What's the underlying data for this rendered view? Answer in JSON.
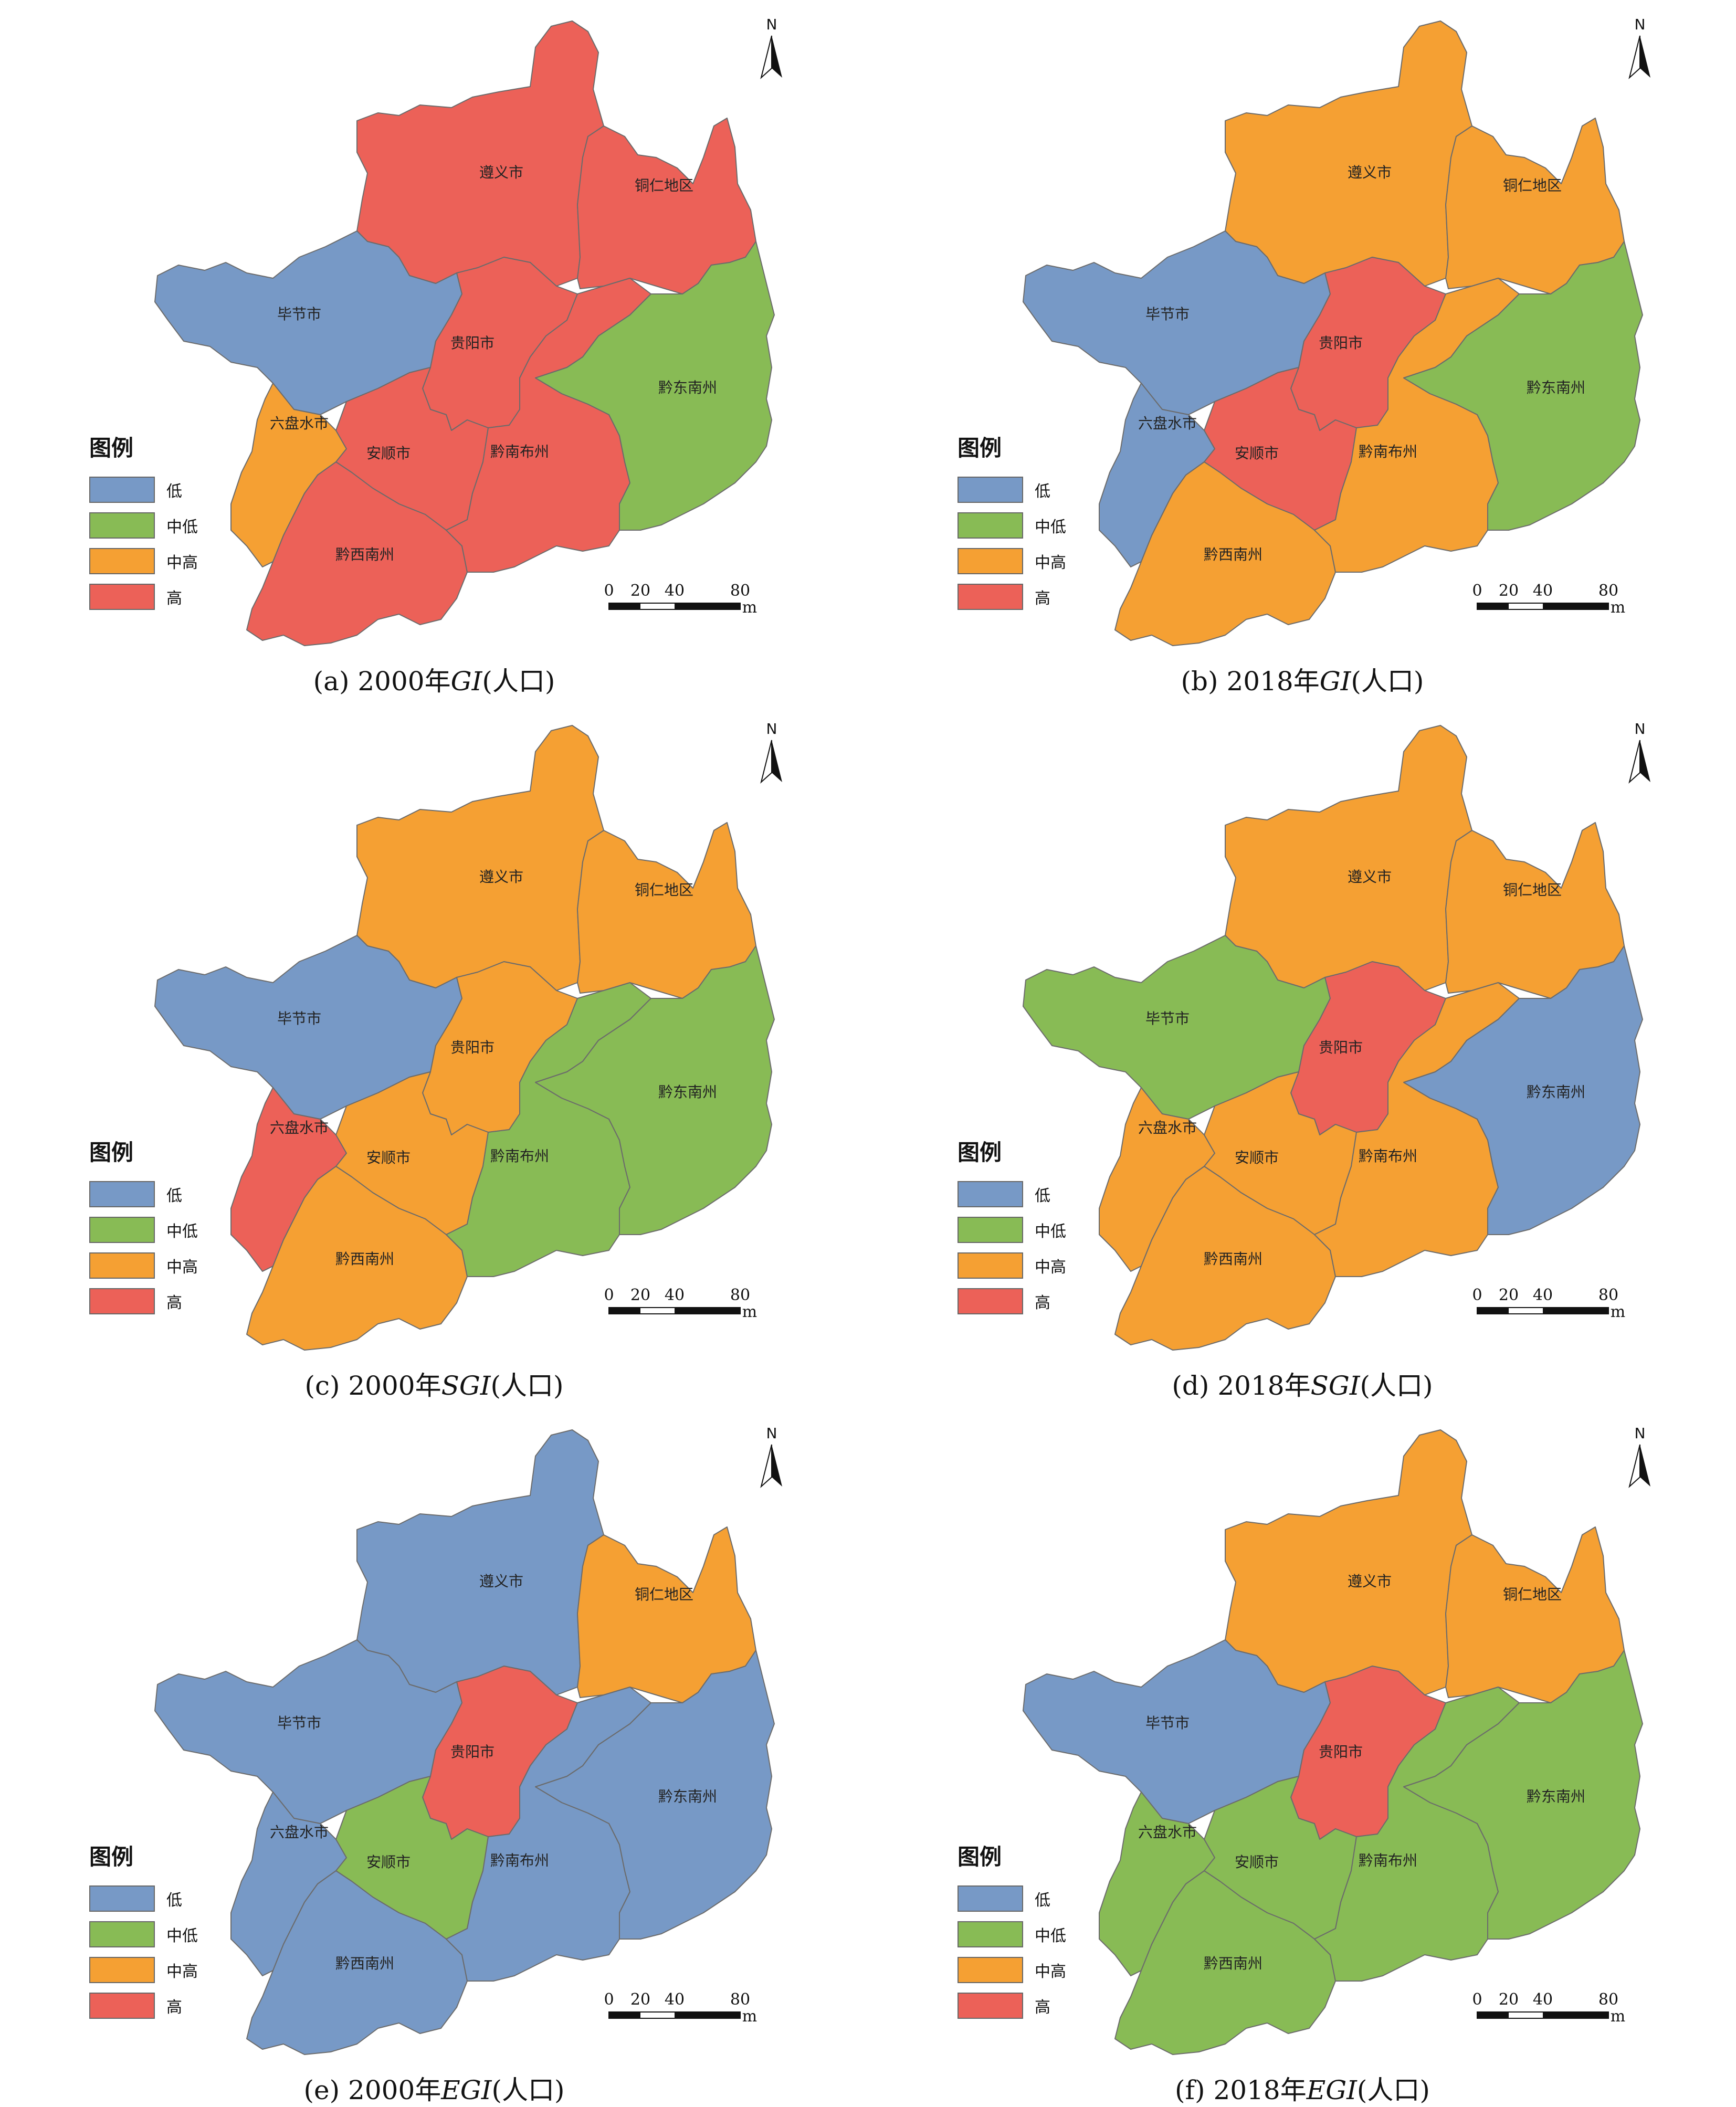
{
  "legend": {
    "title": "图例",
    "classes": [
      {
        "label": "低",
        "color": "#7799c6"
      },
      {
        "label": "中低",
        "color": "#88bb55"
      },
      {
        "label": "中高",
        "color": "#f5a033"
      },
      {
        "label": "高",
        "color": "#ec6158"
      }
    ]
  },
  "north_label": "N",
  "scale": {
    "ticks": [
      "0",
      "20",
      "40",
      "80"
    ],
    "unit": "m"
  },
  "region_names": {
    "zunyi": "遵义市",
    "tongren": "铜仁地区",
    "bijie": "毕节市",
    "guiyang": "贵阳市",
    "qiandongnan": "黔东南州",
    "liupanshui": "六盘水市",
    "anshun": "安顺市",
    "qiannan": "黔南布州",
    "qianxinan": "黔西南州"
  },
  "panels": [
    {
      "id": "a",
      "prefix": "(a) 2000年",
      "var": "GI",
      "suffix": "(人口)",
      "classes": {
        "zunyi": 3,
        "tongren": 3,
        "bijie": 0,
        "guiyang": 3,
        "qiandongnan": 1,
        "liupanshui": 2,
        "anshun": 3,
        "qiannan": 3,
        "qianxinan": 3
      }
    },
    {
      "id": "b",
      "prefix": "(b) 2018年",
      "var": "GI",
      "suffix": "(人口)",
      "classes": {
        "zunyi": 2,
        "tongren": 2,
        "bijie": 0,
        "guiyang": 3,
        "qiandongnan": 1,
        "liupanshui": 0,
        "anshun": 3,
        "qiannan": 2,
        "qianxinan": 2
      }
    },
    {
      "id": "c",
      "prefix": "(c) 2000年",
      "var": "SGI",
      "suffix": "(人口)",
      "classes": {
        "zunyi": 2,
        "tongren": 2,
        "bijie": 0,
        "guiyang": 2,
        "qiandongnan": 1,
        "liupanshui": 3,
        "anshun": 2,
        "qiannan": 1,
        "qianxinan": 2
      }
    },
    {
      "id": "d",
      "prefix": "(d) 2018年",
      "var": "SGI",
      "suffix": "(人口)",
      "classes": {
        "zunyi": 2,
        "tongren": 2,
        "bijie": 1,
        "guiyang": 3,
        "qiandongnan": 0,
        "liupanshui": 2,
        "anshun": 2,
        "qiannan": 2,
        "qianxinan": 2
      }
    },
    {
      "id": "e",
      "prefix": "(e) 2000年",
      "var": "EGI",
      "suffix": "(人口)",
      "classes": {
        "zunyi": 0,
        "tongren": 2,
        "bijie": 0,
        "guiyang": 3,
        "qiandongnan": 0,
        "liupanshui": 0,
        "anshun": 1,
        "qiannan": 0,
        "qianxinan": 0
      }
    },
    {
      "id": "f",
      "prefix": "(f) 2018年",
      "var": "EGI",
      "suffix": "(人口)",
      "classes": {
        "zunyi": 2,
        "tongren": 2,
        "bijie": 0,
        "guiyang": 3,
        "qiandongnan": 1,
        "liupanshui": 1,
        "anshun": 1,
        "qiannan": 1,
        "qianxinan": 1
      }
    }
  ]
}
